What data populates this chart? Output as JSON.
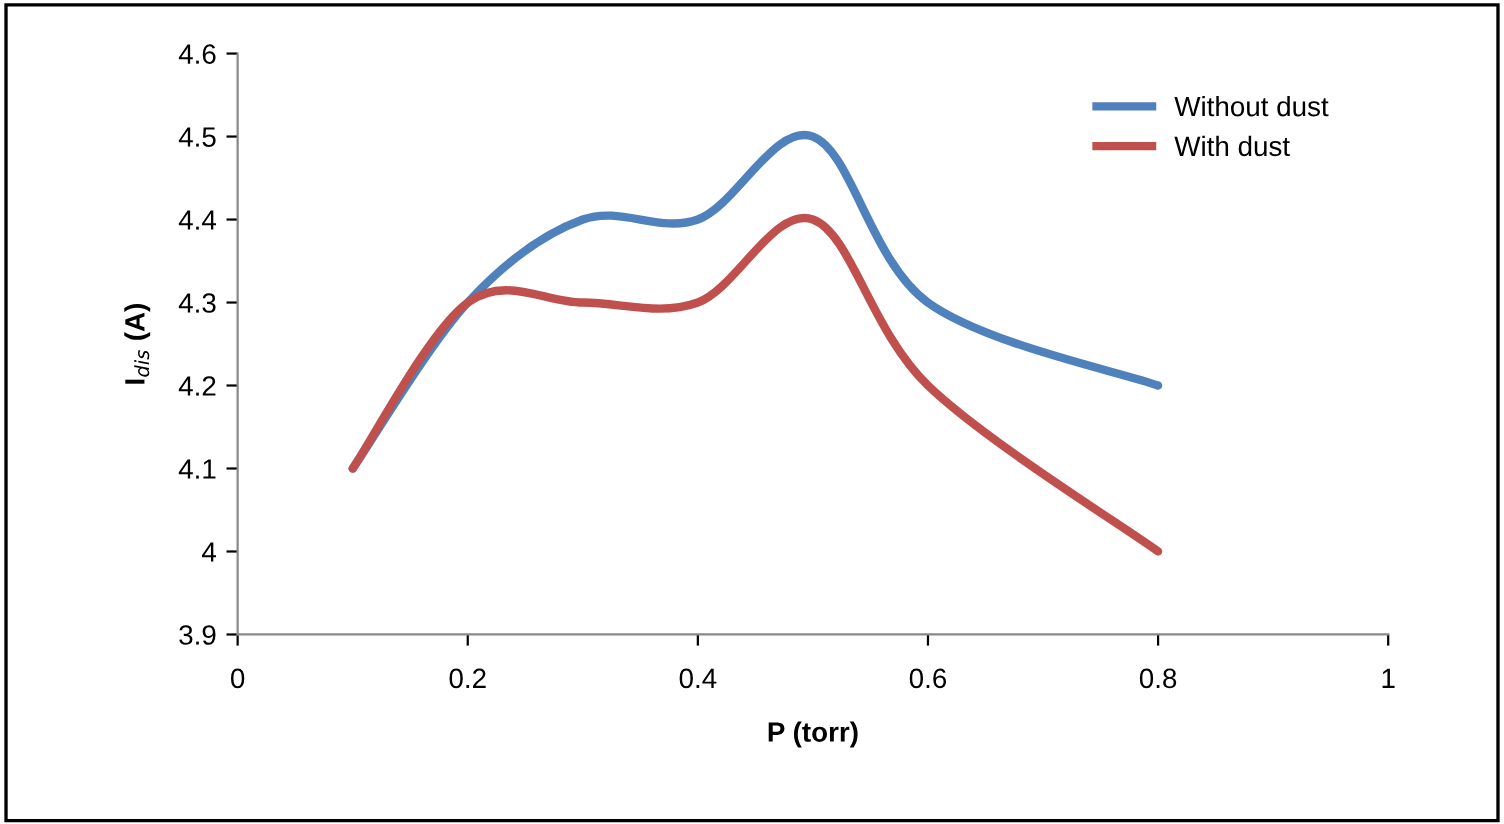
{
  "chart_data": {
    "type": "line",
    "xlabel": "P (torr)",
    "ylabel": "I$_{dis}$ (A)",
    "x": [
      0.1,
      0.2,
      0.3,
      0.4,
      0.5,
      0.6,
      0.8
    ],
    "series": [
      {
        "name": "Without dust",
        "color": "#4f81bd",
        "values": [
          4.1,
          4.3,
          4.4,
          4.4,
          4.5,
          4.3,
          4.2
        ]
      },
      {
        "name": "With dust",
        "color": "#c0504d",
        "values": [
          4.1,
          4.3,
          4.3,
          4.3,
          4.4,
          4.2,
          4.0
        ]
      }
    ],
    "xlim": [
      0,
      1
    ],
    "xticks": [
      0,
      0.2,
      0.4,
      0.6,
      0.8,
      1
    ],
    "ylim": [
      3.9,
      4.6
    ],
    "yticks": [
      3.9,
      4,
      4.1,
      4.2,
      4.3,
      4.4,
      4.5,
      4.6
    ],
    "grid": false,
    "legend": "top right",
    "marker": "none",
    "line_style": "solid"
  }
}
